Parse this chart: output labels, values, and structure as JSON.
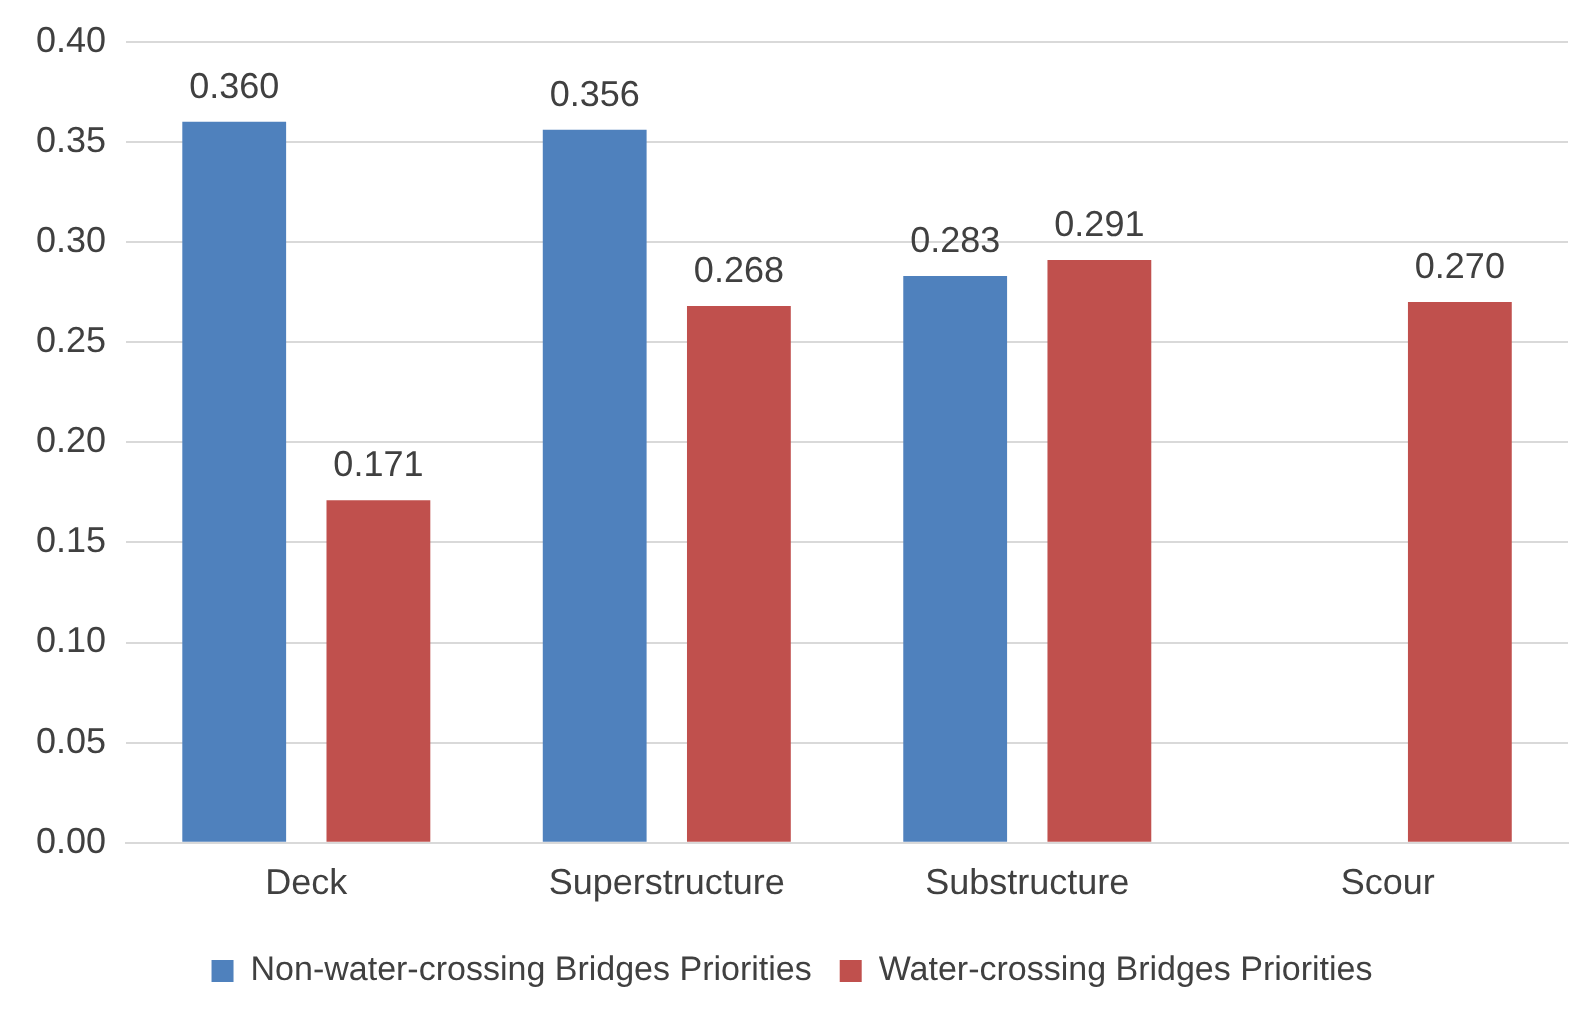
{
  "chart_data": {
    "type": "bar",
    "categories": [
      "Deck",
      "Superstructure",
      "Substructure",
      "Scour"
    ],
    "series": [
      {
        "name": "Non-water-crossing Bridges Priorities",
        "color": "#4f81bd",
        "values": [
          0.36,
          0.356,
          0.283,
          null
        ],
        "value_labels": [
          "0.360",
          "0.356",
          "0.283",
          null
        ]
      },
      {
        "name": "Water-crossing Bridges Priorities",
        "color": "#c0504d",
        "values": [
          0.171,
          0.268,
          0.291,
          0.27
        ],
        "value_labels": [
          "0.171",
          "0.268",
          "0.291",
          "0.270"
        ]
      }
    ],
    "ylim": [
      0,
      0.4
    ],
    "yticks": [
      {
        "value": 0,
        "label": "0.00"
      },
      {
        "value": 0.05,
        "label": "0.05"
      },
      {
        "value": 0.1,
        "label": "0.10"
      },
      {
        "value": 0.15,
        "label": "0.15"
      },
      {
        "value": 0.2,
        "label": "0.20"
      },
      {
        "value": 0.25,
        "label": "0.25"
      },
      {
        "value": 0.3,
        "label": "0.30"
      },
      {
        "value": 0.35,
        "label": "0.35"
      },
      {
        "value": 0.4,
        "label": "0.40"
      }
    ],
    "grid": "y",
    "legend": "bottom"
  }
}
